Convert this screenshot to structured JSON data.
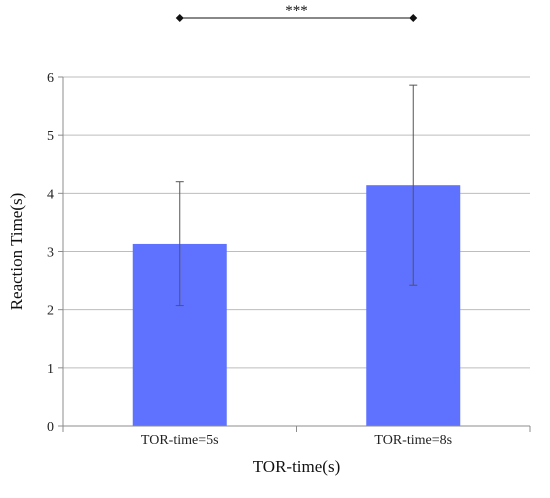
{
  "chart_data": {
    "type": "bar",
    "categories": [
      "TOR-time=5s",
      "TOR-time=8s"
    ],
    "values": [
      3.13,
      4.14
    ],
    "error_bars": [
      {
        "low": 2.07,
        "high": 4.2
      },
      {
        "low": 2.42,
        "high": 5.86
      }
    ],
    "xlabel": "TOR-time(s)",
    "ylabel": "Reaction Time(s)",
    "ylim": [
      0,
      6
    ],
    "yticks": [
      "0",
      "1",
      "2",
      "3",
      "4",
      "5",
      "6"
    ],
    "grid": true,
    "significance": {
      "from": "TOR-time=5s",
      "to": "TOR-time=8s",
      "label": "***"
    },
    "colors": {
      "bar": "#5f72ff",
      "grid": "#bdbdbd",
      "axis": "#8c8c8c",
      "errorbar": "#555555",
      "bracket": "#111111"
    }
  }
}
